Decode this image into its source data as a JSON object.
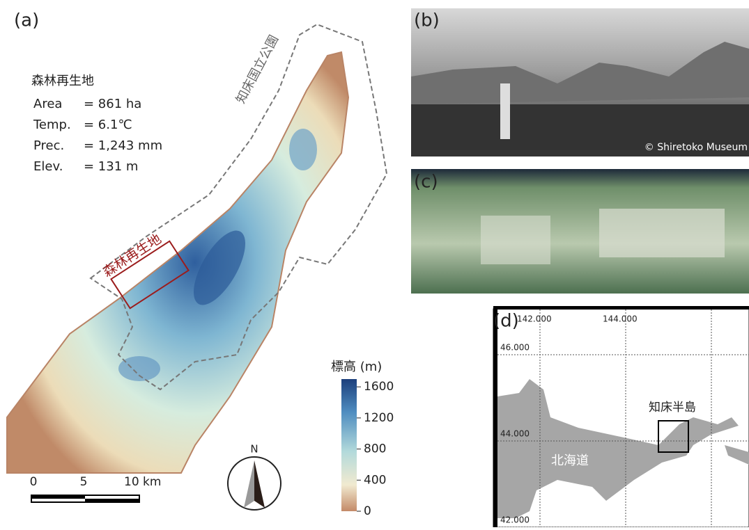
{
  "panel_a": {
    "label": "(a)",
    "site_title": "森林再生地",
    "stats": [
      [
        "Area",
        "= 861 ha"
      ],
      [
        "Temp.",
        "= 6.1℃"
      ],
      [
        "Prec.",
        "= 1,243 mm"
      ],
      [
        "Elev.",
        "= 131 m"
      ]
    ],
    "park_label": "知床国立公園",
    "site_label": "森林再生地",
    "colorbar": {
      "title": "標高 (m)",
      "lim": [
        0,
        1700
      ],
      "ticks": [
        1600,
        1200,
        800,
        400,
        0
      ]
    },
    "scale_labels": [
      "0",
      "5",
      "10 km"
    ],
    "north": "N"
  },
  "panel_b": {
    "label": "(b)",
    "credit": "© Shiretoko Museum"
  },
  "panel_c": {
    "label": "(c)"
  },
  "panel_d": {
    "label": "(d)",
    "xticks": [
      {
        "value": 142,
        "label": "142.000"
      },
      {
        "value": 144,
        "label": "144.000"
      }
    ],
    "yticks": [
      {
        "value": 46,
        "label": "46.000"
      },
      {
        "value": 44,
        "label": "44.000"
      },
      {
        "value": 42,
        "label": "42.000"
      }
    ],
    "peninsula_label": "知床半島",
    "island_label": "北海道"
  }
}
